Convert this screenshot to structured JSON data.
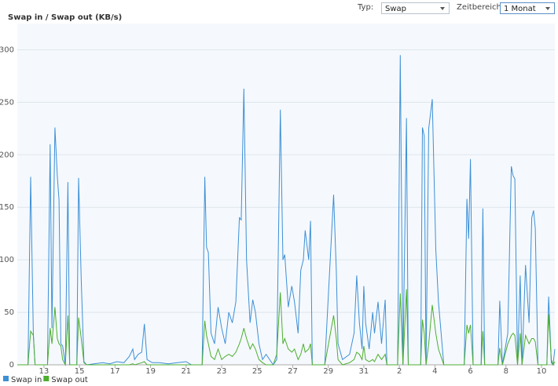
{
  "controls": {
    "type_label": "Typ:",
    "type_value": "Swap",
    "range_label": "Zeitbereich:",
    "range_value": "1 Monat"
  },
  "chart_data": {
    "type": "line",
    "title": "Swap in / Swap out (KB/s)",
    "x": [
      0.0,
      0.6,
      0.75,
      0.9,
      1.0,
      1.7,
      1.85,
      1.95,
      2.12,
      2.25,
      2.35,
      2.45,
      2.55,
      2.7,
      2.85,
      2.95,
      3.35,
      3.45,
      3.6,
      3.75,
      3.9,
      4.8,
      5.2,
      5.6,
      6.0,
      6.3,
      6.5,
      6.6,
      6.8,
      7.0,
      7.15,
      7.3,
      7.6,
      8.0,
      8.5,
      9.0,
      9.5,
      9.8,
      10.4,
      10.55,
      10.65,
      10.75,
      10.9,
      11.1,
      11.3,
      11.5,
      11.7,
      11.9,
      12.1,
      12.3,
      12.5,
      12.6,
      12.75,
      12.9,
      13.1,
      13.25,
      13.4,
      13.6,
      13.8,
      14.0,
      14.4,
      14.6,
      14.8,
      14.95,
      15.05,
      15.25,
      15.45,
      15.6,
      15.8,
      15.95,
      16.1,
      16.2,
      16.4,
      16.5,
      16.6,
      17.3,
      17.8,
      17.95,
      18.05,
      18.3,
      18.7,
      18.95,
      19.1,
      19.25,
      19.4,
      19.5,
      19.6,
      19.8,
      20.0,
      20.1,
      20.3,
      20.5,
      20.7,
      20.8,
      21.4,
      21.55,
      21.7,
      21.9,
      22.0,
      22.7,
      22.8,
      22.9,
      23.0,
      23.15,
      23.35,
      23.55,
      23.7,
      24.0,
      25.15,
      25.3,
      25.4,
      25.5,
      25.65,
      26.1,
      26.2,
      26.3,
      27.05,
      27.15,
      27.3,
      27.6,
      27.8,
      27.9,
      28.0,
      28.15,
      28.3,
      28.4,
      28.6,
      28.8,
      28.95,
      29.05,
      29.15,
      29.3,
      29.8,
      29.9,
      30.05,
      30.15,
      30.25
    ],
    "series": [
      {
        "name": "Swap in",
        "color": "#3d8fd6",
        "values": [
          0,
          0,
          179,
          30,
          0,
          0,
          210,
          35,
          226,
          180,
          157,
          20,
          18,
          0,
          174,
          0,
          0,
          178,
          80,
          3,
          0,
          2,
          1,
          3,
          2,
          8,
          15,
          5,
          10,
          12,
          39,
          5,
          2,
          2,
          1,
          2,
          3,
          0,
          0,
          179,
          112,
          107,
          30,
          20,
          55,
          35,
          20,
          50,
          40,
          60,
          140,
          138,
          263,
          100,
          40,
          62,
          50,
          20,
          5,
          10,
          0,
          5,
          243,
          100,
          105,
          55,
          75,
          60,
          30,
          90,
          100,
          128,
          100,
          137,
          0,
          0,
          162,
          90,
          20,
          5,
          10,
          30,
          85,
          40,
          15,
          75,
          40,
          15,
          50,
          30,
          60,
          20,
          62,
          0,
          0,
          295,
          0,
          235,
          0,
          0,
          226,
          218,
          0,
          225,
          253,
          110,
          60,
          0,
          0,
          158,
          120,
          196,
          0,
          0,
          149,
          0,
          0,
          61,
          0,
          30,
          189,
          180,
          177,
          0,
          85,
          0,
          95,
          40,
          140,
          147,
          130,
          0,
          0,
          65,
          2,
          0,
          15
        ]
      },
      {
        "name": "Swap out",
        "color": "#4cae2f",
        "values": [
          0,
          0,
          32,
          28,
          0,
          0,
          35,
          20,
          55,
          25,
          20,
          18,
          5,
          0,
          47,
          0,
          0,
          45,
          25,
          2,
          0,
          0,
          0,
          0,
          0,
          0,
          1,
          0,
          1,
          2,
          3,
          0,
          0,
          0,
          0,
          0,
          0,
          0,
          0,
          42,
          28,
          20,
          8,
          5,
          15,
          5,
          8,
          10,
          8,
          12,
          20,
          25,
          35,
          25,
          15,
          20,
          15,
          5,
          2,
          0,
          0,
          10,
          69,
          20,
          25,
          15,
          12,
          15,
          5,
          10,
          20,
          12,
          15,
          20,
          0,
          0,
          47,
          25,
          5,
          0,
          2,
          5,
          12,
          10,
          5,
          18,
          5,
          3,
          5,
          3,
          10,
          5,
          10,
          0,
          0,
          68,
          0,
          72,
          0,
          0,
          43,
          30,
          0,
          20,
          57,
          30,
          15,
          0,
          0,
          38,
          30,
          38,
          0,
          0,
          32,
          0,
          0,
          16,
          0,
          20,
          28,
          30,
          28,
          0,
          30,
          0,
          28,
          20,
          25,
          25,
          22,
          0,
          0,
          48,
          5,
          0,
          3
        ]
      }
    ],
    "xlim": [
      0,
      30.25
    ],
    "xticks": [
      {
        "value": 1.5,
        "label": "13"
      },
      {
        "value": 3.5,
        "label": "15"
      },
      {
        "value": 5.5,
        "label": "17"
      },
      {
        "value": 7.5,
        "label": "19"
      },
      {
        "value": 9.5,
        "label": "21"
      },
      {
        "value": 11.5,
        "label": "23"
      },
      {
        "value": 13.5,
        "label": "25"
      },
      {
        "value": 15.5,
        "label": "27"
      },
      {
        "value": 17.5,
        "label": "29"
      },
      {
        "value": 19.5,
        "label": "31"
      },
      {
        "value": 21.5,
        "label": "2"
      },
      {
        "value": 23.5,
        "label": "4"
      },
      {
        "value": 25.5,
        "label": "6"
      },
      {
        "value": 27.5,
        "label": "8"
      },
      {
        "value": 29.5,
        "label": "10"
      }
    ],
    "ylim": [
      0,
      325
    ],
    "yticks": [
      0,
      50,
      100,
      150,
      200,
      250,
      300
    ],
    "grid": true
  }
}
